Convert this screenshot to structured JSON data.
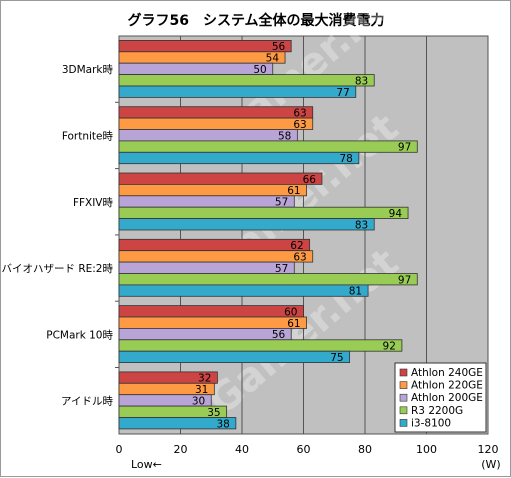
{
  "chart_data": {
    "type": "bar",
    "orientation": "horizontal",
    "title": "グラフ56　システム全体の最大消費電力",
    "categories": [
      "3DMark時",
      "Fortnite時",
      "FFXIV時",
      "バイオハザード RE:2時",
      "PCMark 10時",
      "アイドル時"
    ],
    "series": [
      {
        "name": "Athlon 240GE",
        "color": "#cc4444",
        "values": [
          56,
          63,
          66,
          62,
          60,
          32
        ]
      },
      {
        "name": "Athlon 220GE",
        "color": "#ff9a44",
        "values": [
          54,
          63,
          61,
          63,
          61,
          31
        ]
      },
      {
        "name": "Athlon 200GE",
        "color": "#b9a4d8",
        "values": [
          50,
          58,
          57,
          57,
          56,
          30
        ]
      },
      {
        "name": "R3 2200G",
        "color": "#99cc55",
        "values": [
          83,
          97,
          94,
          97,
          92,
          35
        ]
      },
      {
        "name": "i3-8100",
        "color": "#33aacc",
        "values": [
          77,
          78,
          83,
          81,
          75,
          38
        ]
      }
    ],
    "xlim": [
      0,
      120
    ],
    "xticks": [
      0,
      20,
      40,
      60,
      80,
      100,
      120
    ],
    "x_unit": "(W)",
    "x_note": "Low←",
    "grid": true,
    "plot_background": "#c0c0c0",
    "legend_position": "bottom-right",
    "watermark": "4Gamer.net"
  }
}
